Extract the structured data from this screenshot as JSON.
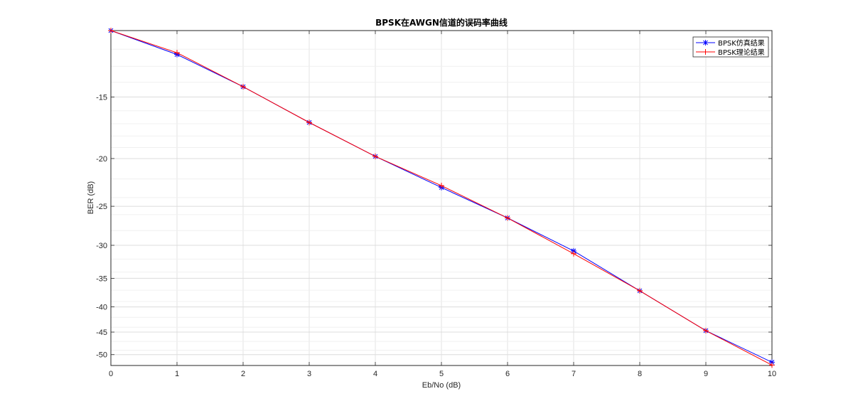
{
  "chart_data": {
    "type": "line",
    "title": "BPSK在AWGN信道的误码率曲线",
    "xlabel": "Eb/No (dB)",
    "ylabel": "BER (dB)",
    "xlim": [
      0,
      10
    ],
    "x_ticks": [
      "0",
      "1",
      "2",
      "3",
      "4",
      "5",
      "6",
      "7",
      "8",
      "9",
      "10"
    ],
    "y_tick_values": [
      -15,
      -20,
      -25,
      -30,
      -35,
      -40,
      -45,
      -50
    ],
    "y_ticks": [
      "-15",
      "-20",
      "-25",
      "-30",
      "-35",
      "-40",
      "-45",
      "-50"
    ],
    "y_scale": "log (values in dB)",
    "grid": true,
    "legend_position": "top-right",
    "x": [
      0,
      1,
      2,
      3,
      4,
      5,
      6,
      7,
      8,
      9,
      10
    ],
    "series": [
      {
        "name": "BPSK仿真结果",
        "color": "#0000ff",
        "marker": "asterisk",
        "values": [
          -11.0,
          -12.3,
          -14.3,
          -16.9,
          -19.8,
          -22.9,
          -26.4,
          -30.8,
          -37.1,
          -44.7,
          -51.8
        ]
      },
      {
        "name": "BPSK理论结果",
        "color": "#ff0000",
        "marker": "plus",
        "values": [
          -11.0,
          -12.2,
          -14.3,
          -16.9,
          -19.8,
          -22.7,
          -26.4,
          -31.2,
          -37.1,
          -44.7,
          -52.5
        ]
      }
    ]
  }
}
